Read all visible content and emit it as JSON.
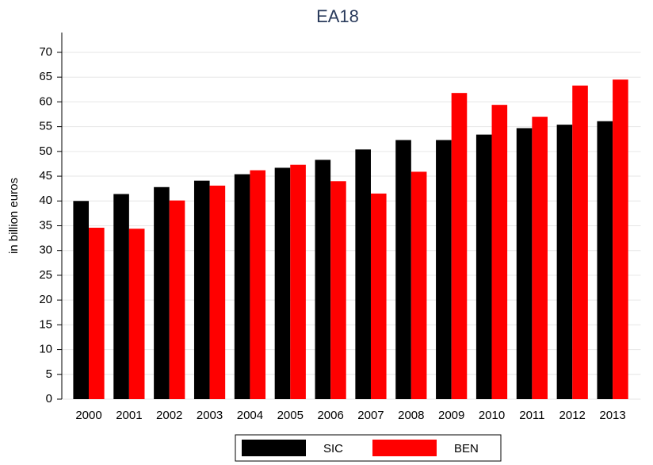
{
  "chart_data": {
    "type": "bar",
    "title": "EA18",
    "y_label": "in billion euros",
    "categories": [
      "2000",
      "2001",
      "2002",
      "2003",
      "2004",
      "2005",
      "2006",
      "2007",
      "2008",
      "2009",
      "2010",
      "2011",
      "2012",
      "2013"
    ],
    "series": [
      {
        "name": "SIC",
        "color": "#000000",
        "values": [
          40.0,
          41.4,
          42.8,
          44.1,
          45.4,
          46.7,
          48.3,
          50.4,
          52.3,
          52.3,
          53.4,
          54.7,
          55.4,
          56.1
        ]
      },
      {
        "name": "BEN",
        "color": "#ff0000",
        "values": [
          34.6,
          34.4,
          40.1,
          43.1,
          46.2,
          47.3,
          44.0,
          41.5,
          45.9,
          61.8,
          59.4,
          57.0,
          63.3,
          64.5
        ]
      }
    ],
    "ylim": [
      0,
      74
    ],
    "yticks": [
      0,
      5,
      10,
      15,
      20,
      25,
      30,
      35,
      40,
      45,
      50,
      55,
      60,
      65,
      70
    ],
    "grid": true,
    "legend": "bottom"
  }
}
